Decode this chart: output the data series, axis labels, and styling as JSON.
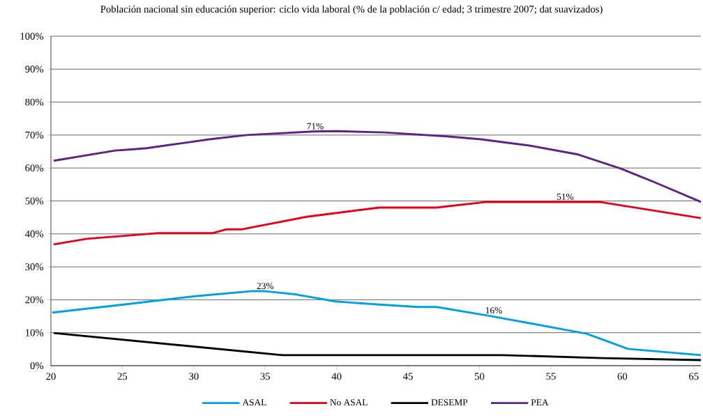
{
  "chart_data": {
    "type": "line",
    "title": "Población nacional sin educación superior: ciclo vida laboral (% de la población c/ edad; 3 trimestre 2007; dat suavizados)",
    "xlim": [
      20,
      65.5
    ],
    "xticks": [
      20,
      25,
      30,
      35,
      40,
      45,
      50,
      55,
      60,
      65
    ],
    "ylim": [
      0,
      100
    ],
    "yticks": [
      {
        "value": 0,
        "label": "0%"
      },
      {
        "value": 10,
        "label": "10%"
      },
      {
        "value": 20,
        "label": "20%"
      },
      {
        "value": 30,
        "label": "30%"
      },
      {
        "value": 40,
        "label": "40%"
      },
      {
        "value": 50,
        "label": "50%"
      },
      {
        "value": 60,
        "label": "60%"
      },
      {
        "value": 70,
        "label": "70%"
      },
      {
        "value": 80,
        "label": "80%"
      },
      {
        "value": 90,
        "label": "90%"
      },
      {
        "value": 100,
        "label": "100%"
      }
    ],
    "grid": "y",
    "legend": "bottom",
    "marker": "none",
    "line_style": "solid",
    "series": [
      {
        "name": "ASAL",
        "color": "#009fe0",
        "x": [
          20.1,
          25.2,
          30.1,
          34,
          35,
          37.2,
          39.9,
          42.8,
          45.7,
          47,
          50.6,
          53.5,
          57.5,
          60.4,
          65.5
        ],
        "values": [
          16.1,
          18.6,
          21.1,
          22.6,
          22.6,
          21.6,
          19.5,
          18.6,
          17.8,
          17.8,
          15.2,
          12.9,
          9.7,
          5.1,
          3.2
        ]
      },
      {
        "name": "No ASAL",
        "color": "#e2001a",
        "x": [
          20.2,
          22.5,
          27.4,
          31.3,
          32.3,
          33.4,
          37.9,
          43,
          47,
          50.5,
          54.5,
          58.4,
          65.5
        ],
        "values": [
          36.8,
          38.5,
          40.2,
          40.2,
          41.4,
          41.4,
          45.2,
          48,
          48,
          49.7,
          49.7,
          49.7,
          44.8
        ]
      },
      {
        "name": "DESEMP",
        "color": "#000000",
        "x": [
          20.2,
          36.2,
          51.6,
          58.6,
          65.5
        ],
        "values": [
          9.9,
          3.2,
          3.2,
          2.3,
          1.7
        ]
      },
      {
        "name": "PEA",
        "color": "#5c2483",
        "x": [
          20.2,
          24.5,
          25.8,
          26.7,
          31.1,
          33.7,
          38.4,
          40,
          43.3,
          47.7,
          50.1,
          53.5,
          56.9,
          59.9,
          62.3,
          65.5
        ],
        "values": [
          62.2,
          65.3,
          65.7,
          66,
          68.7,
          70,
          71.1,
          71.2,
          70.8,
          69.6,
          68.7,
          66.8,
          64.1,
          59.8,
          55.6,
          49.7
        ]
      }
    ],
    "annotations": [
      {
        "text": "71%",
        "x": 38.5,
        "y": 71.1
      },
      {
        "text": "51%",
        "x": 56,
        "y": 49.7
      },
      {
        "text": "23%",
        "x": 35,
        "y": 22.6
      },
      {
        "text": "16%",
        "x": 51,
        "y": 15.2
      }
    ]
  }
}
